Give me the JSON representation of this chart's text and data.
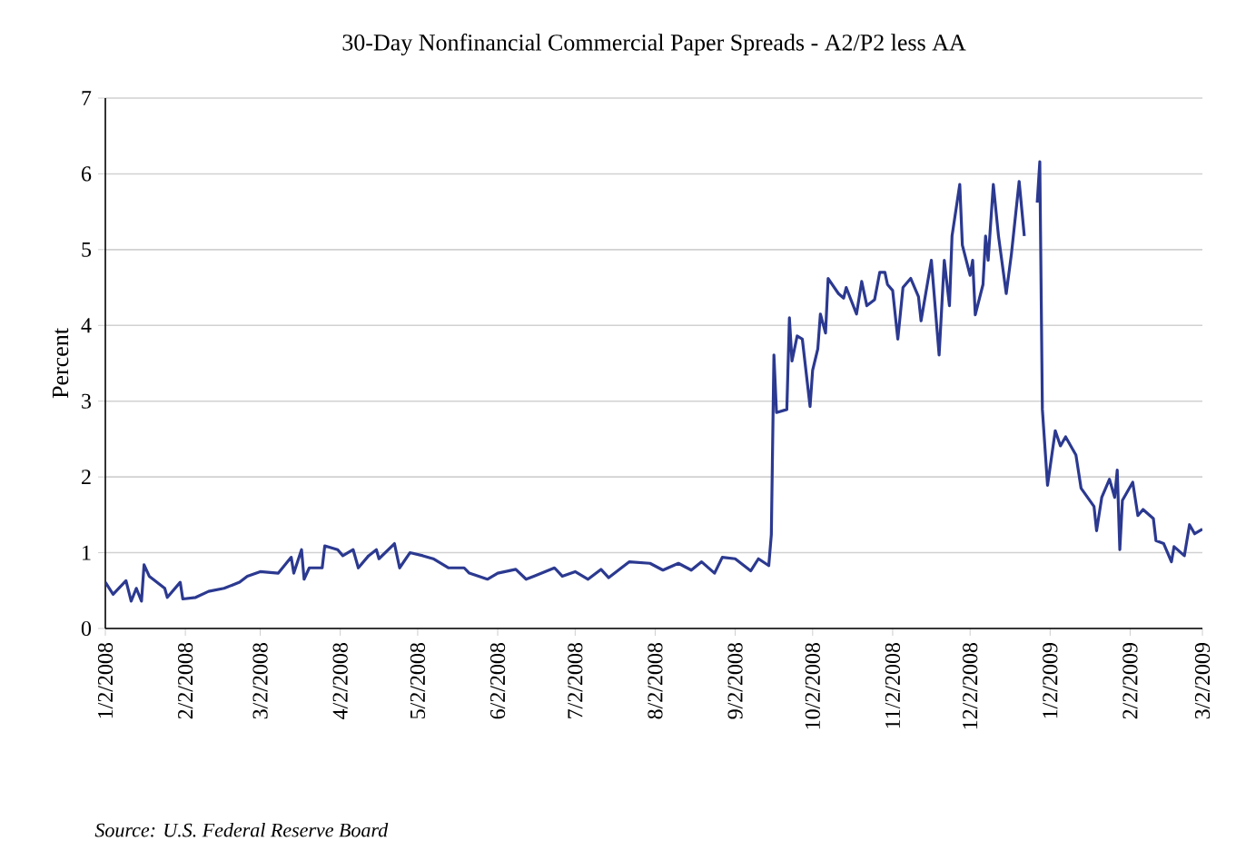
{
  "chart_data": {
    "type": "line",
    "title": "30-Day Nonfinancial Commercial Paper Spreads - A2/P2 less AA",
    "ylabel": "Percent",
    "annotations": [
      "Source:  U.S. Federal Reserve Board"
    ],
    "x": [
      "2008-01-02",
      "2008-01-05",
      "2008-01-10",
      "2008-01-12",
      "2008-01-14",
      "2008-01-16",
      "2008-01-17",
      "2008-01-19",
      "2008-01-25",
      "2008-01-26",
      "2008-01-31",
      "2008-02-01",
      "2008-02-06",
      "2008-02-11",
      "2008-02-17",
      "2008-02-23",
      "2008-02-26",
      "2008-03-02",
      "2008-03-09",
      "2008-03-14",
      "2008-03-15",
      "2008-03-18",
      "2008-03-19",
      "2008-03-21",
      "2008-03-26",
      "2008-03-27",
      "2008-04-01",
      "2008-04-03",
      "2008-04-07",
      "2008-04-09",
      "2008-04-13",
      "2008-04-16",
      "2008-04-17",
      "2008-04-23",
      "2008-04-25",
      "2008-04-29",
      "2008-05-04",
      "2008-05-08",
      "2008-05-14",
      "2008-05-20",
      "2008-05-22",
      "2008-05-29",
      "2008-06-02",
      "2008-06-09",
      "2008-06-13",
      "2008-06-16",
      "2008-06-24",
      "2008-06-27",
      "2008-07-02",
      "2008-07-07",
      "2008-07-12",
      "2008-07-15",
      "2008-07-23",
      "2008-07-31",
      "2008-08-05",
      "2008-08-11",
      "2008-08-16",
      "2008-08-20",
      "2008-08-25",
      "2008-08-28",
      "2008-09-02",
      "2008-09-08",
      "2008-09-11",
      "2008-09-15",
      "2008-09-16",
      "2008-09-17",
      "2008-09-18",
      "2008-09-22",
      "2008-09-23",
      "2008-09-24",
      "2008-09-26",
      "2008-09-28",
      "2008-10-01",
      "2008-10-02",
      "2008-10-04",
      "2008-10-05",
      "2008-10-07",
      "2008-10-08",
      "2008-10-12",
      "2008-10-14",
      "2008-10-15",
      "2008-10-19",
      "2008-10-21",
      "2008-10-23",
      "2008-10-26",
      "2008-10-28",
      "2008-10-30",
      "2008-10-31",
      "2008-11-02",
      "2008-11-04",
      "2008-11-06",
      "2008-11-09",
      "2008-11-12",
      "2008-11-13",
      "2008-11-17",
      "2008-11-20",
      "2008-11-22",
      "2008-11-24",
      "2008-11-25",
      "2008-11-28",
      "2008-11-29",
      "2008-12-02",
      "2008-12-03",
      "2008-12-04",
      "2008-12-07",
      "2008-12-08",
      "2008-12-09",
      "2008-12-11",
      "2008-12-13",
      "2008-12-16",
      "2008-12-18",
      "2008-12-21",
      "2008-12-23",
      "2008-12-25",
      "2008-12-28",
      "2008-12-29",
      "2008-12-30",
      "2009-01-01",
      "2009-01-04",
      "2009-01-06",
      "2009-01-08",
      "2009-01-10",
      "2009-01-12",
      "2009-01-14",
      "2009-01-19",
      "2009-01-20",
      "2009-01-22",
      "2009-01-25",
      "2009-01-27",
      "2009-01-28",
      "2009-01-29",
      "2009-01-30",
      "2009-02-03",
      "2009-02-05",
      "2009-02-07",
      "2009-02-11",
      "2009-02-12",
      "2009-02-15",
      "2009-02-18",
      "2009-02-19",
      "2009-02-23",
      "2009-02-25",
      "2009-02-27",
      "2009-03-02"
    ],
    "series": [
      {
        "color": "#2b3990",
        "values": [
          0.61,
          0.45,
          0.63,
          0.36,
          0.53,
          0.36,
          0.84,
          0.69,
          0.53,
          0.41,
          0.61,
          0.39,
          0.41,
          0.49,
          0.53,
          0.61,
          0.69,
          0.75,
          0.73,
          0.94,
          0.73,
          1.04,
          0.65,
          0.8,
          0.8,
          1.09,
          1.04,
          0.96,
          1.04,
          0.8,
          0.96,
          1.04,
          0.92,
          1.12,
          0.8,
          1.0,
          0.96,
          0.92,
          0.8,
          0.8,
          0.73,
          0.65,
          0.73,
          0.78,
          0.65,
          0.69,
          0.8,
          0.69,
          0.75,
          0.65,
          0.78,
          0.67,
          0.88,
          0.86,
          0.77,
          0.86,
          0.77,
          0.88,
          0.73,
          0.94,
          0.92,
          0.76,
          0.92,
          0.83,
          1.24,
          3.61,
          2.85,
          2.89,
          4.1,
          3.53,
          3.86,
          3.82,
          2.93,
          3.41,
          3.69,
          4.15,
          3.9,
          4.62,
          4.42,
          4.36,
          4.5,
          4.15,
          4.58,
          4.26,
          4.34,
          4.7,
          4.7,
          4.54,
          4.46,
          3.82,
          4.5,
          4.62,
          4.38,
          4.06,
          4.86,
          3.61,
          4.86,
          4.26,
          5.18,
          5.86,
          5.06,
          4.66,
          4.86,
          4.14,
          4.54,
          5.18,
          4.86,
          5.86,
          5.18,
          4.42,
          4.94,
          5.9,
          5.18,
          null,
          5.62,
          6.16,
          2.89,
          1.89,
          2.61,
          2.41,
          2.53,
          2.41,
          2.29,
          1.85,
          1.61,
          1.29,
          1.73,
          1.97,
          1.73,
          2.09,
          1.04,
          1.69,
          1.93,
          1.49,
          1.57,
          1.45,
          1.16,
          1.12,
          0.88,
          1.08,
          0.96,
          1.37,
          1.25,
          1.31
        ]
      }
    ],
    "xlim": [
      "2008-01-02",
      "2009-03-02"
    ],
    "xticks": [
      {
        "value": "2008-01-02",
        "label": "1/2/2008"
      },
      {
        "value": "2008-02-02",
        "label": "2/2/2008"
      },
      {
        "value": "2008-03-02",
        "label": "3/2/2008"
      },
      {
        "value": "2008-04-02",
        "label": "4/2/2008"
      },
      {
        "value": "2008-05-02",
        "label": "5/2/2008"
      },
      {
        "value": "2008-06-02",
        "label": "6/2/2008"
      },
      {
        "value": "2008-07-02",
        "label": "7/2/2008"
      },
      {
        "value": "2008-08-02",
        "label": "8/2/2008"
      },
      {
        "value": "2008-09-02",
        "label": "9/2/2008"
      },
      {
        "value": "2008-10-02",
        "label": "10/2/2008"
      },
      {
        "value": "2008-11-02",
        "label": "11/2/2008"
      },
      {
        "value": "2008-12-02",
        "label": "12/2/2008"
      },
      {
        "value": "2009-01-02",
        "label": "1/2/2009"
      },
      {
        "value": "2009-02-02",
        "label": "2/2/2009"
      },
      {
        "value": "2009-03-02",
        "label": "3/2/2009"
      }
    ],
    "ylim": [
      0,
      7
    ],
    "yticks": [
      0,
      1,
      2,
      3,
      4,
      5,
      6,
      7
    ],
    "grid": "y",
    "marker": "none",
    "line_style": "solid"
  }
}
